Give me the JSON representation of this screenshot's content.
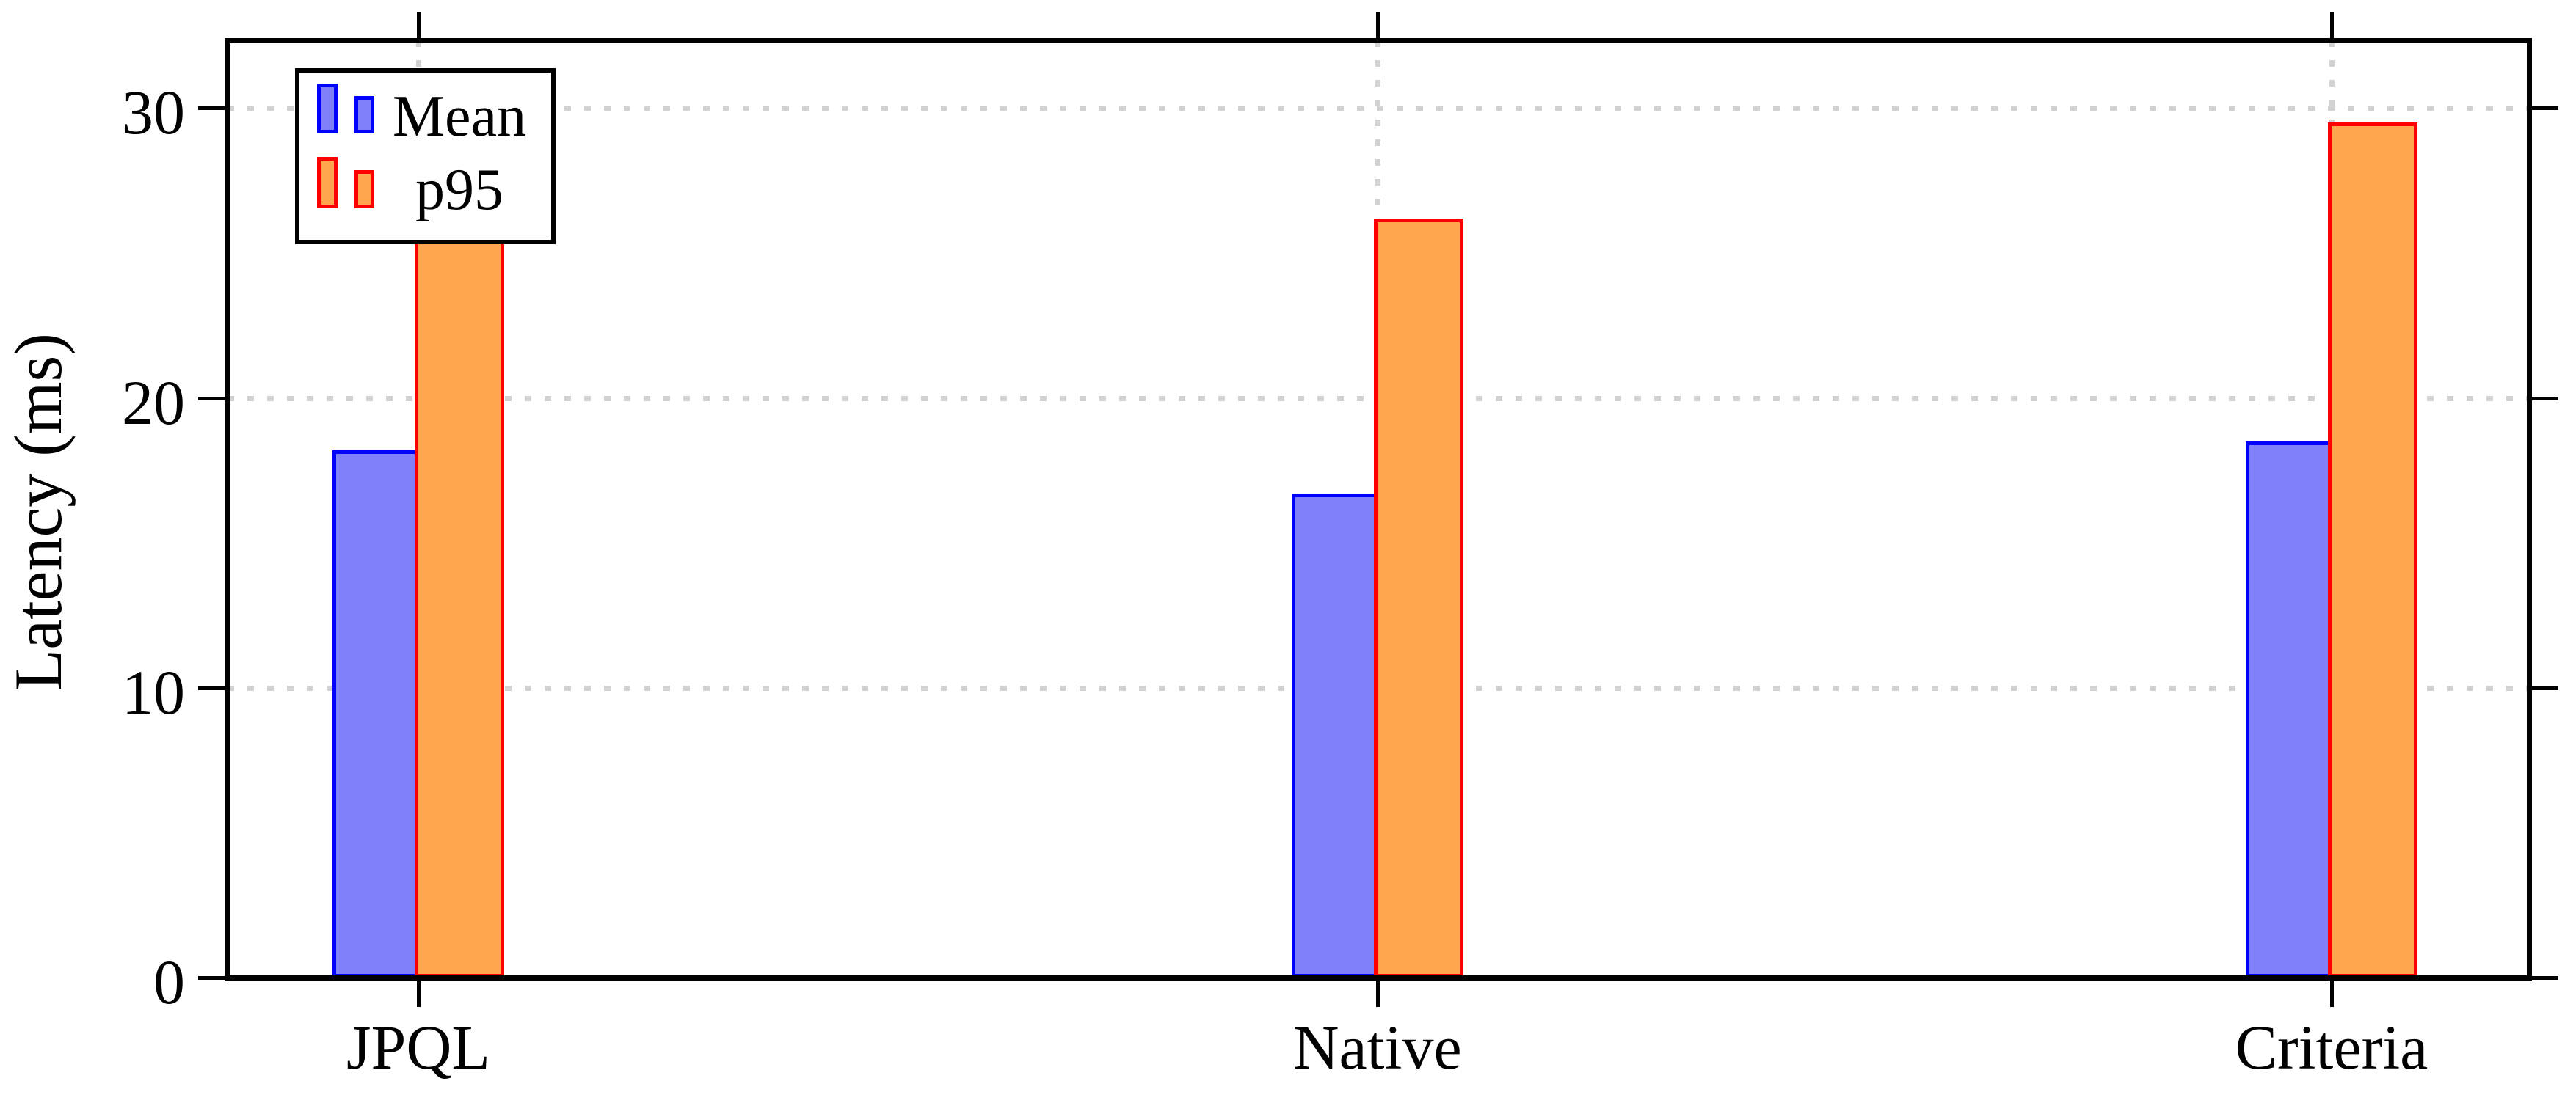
{
  "chart_data": {
    "type": "bar",
    "title": "",
    "categories": [
      "JPQL",
      "Native",
      "Criteria"
    ],
    "series": [
      {
        "name": "Mean",
        "values": [
          18.2,
          16.7,
          18.5
        ],
        "fill": "#8080fa",
        "border": "#0000ff"
      },
      {
        "name": "p95",
        "values": [
          27.5,
          26.2,
          29.5
        ],
        "fill": "#ffa64f",
        "border": "#ff0000"
      }
    ],
    "xlabel": "",
    "ylabel": "Latency (ms)",
    "yticks": [
      0,
      10,
      20,
      30
    ],
    "ylim": [
      0,
      32.34
    ],
    "grid": {
      "style": "dotted",
      "color": "#d2d2d2",
      "horizontal_at": [
        10,
        20,
        30
      ],
      "vertical_at_categories": true
    },
    "legend": {
      "position": "top-left",
      "entries": [
        "Mean",
        "p95"
      ]
    }
  },
  "colors": {
    "axis": "#000000",
    "background": "#ffffff",
    "text": "#000000"
  }
}
